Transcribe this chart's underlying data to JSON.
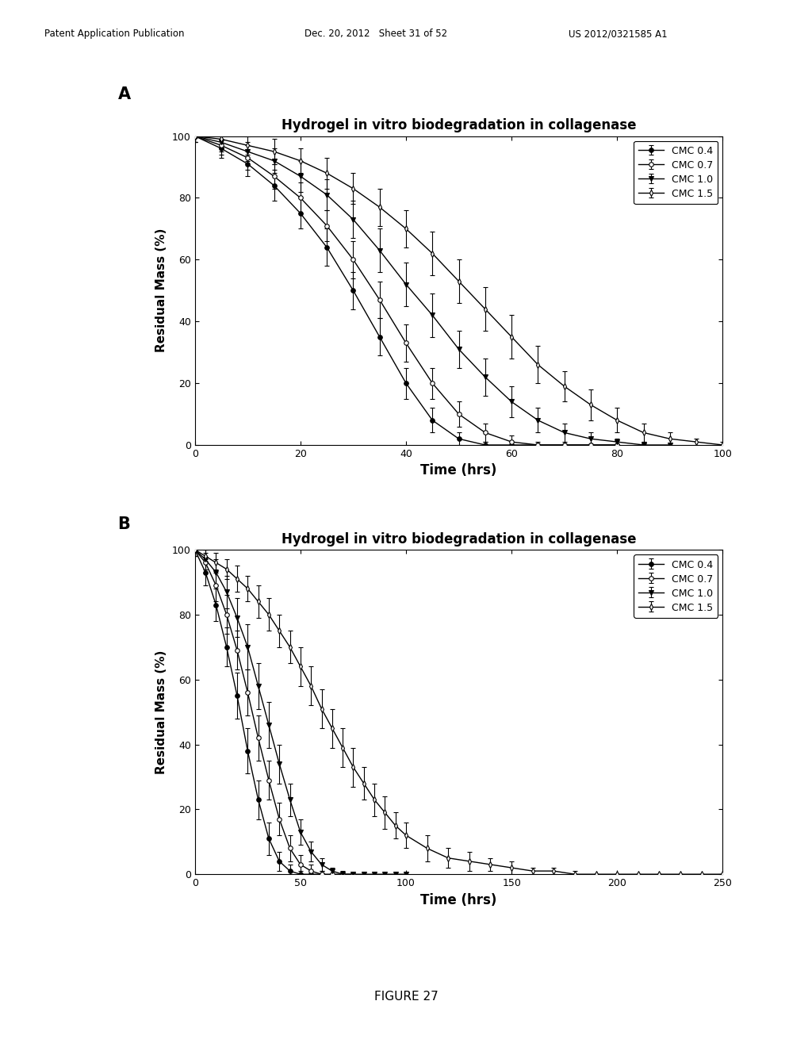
{
  "title": "Hydrogel in vitro biodegradation in collagenase",
  "xlabel": "Time (hrs)",
  "ylabel": "Residual Mass (%)",
  "panel_labels": [
    "A",
    "B"
  ],
  "figure_caption": "FIGURE 27",
  "legend_labels": [
    "CMC 0.4",
    "CMC 0.7",
    "CMC 1.0",
    "CMC 1.5"
  ],
  "header_left": "Patent Application Publication",
  "header_mid": "Dec. 20, 2012   Sheet 31 of 52",
  "header_right": "US 2012/0321585 A1",
  "plot_A": {
    "xlim": [
      0,
      100
    ],
    "ylim": [
      0,
      100
    ],
    "xticks": [
      0,
      20,
      40,
      60,
      80,
      100
    ],
    "yticks": [
      0,
      20,
      40,
      60,
      80,
      100
    ],
    "series": {
      "CMC_04": {
        "x": [
          0,
          5,
          10,
          15,
          20,
          25,
          30,
          35,
          40,
          45,
          50,
          55,
          60,
          65,
          70,
          75,
          80
        ],
        "y": [
          100,
          96,
          91,
          84,
          75,
          64,
          50,
          35,
          20,
          8,
          2,
          0,
          0,
          0,
          0,
          0,
          0
        ],
        "yerr": [
          2,
          3,
          4,
          5,
          5,
          6,
          6,
          6,
          5,
          4,
          2,
          1,
          0,
          0,
          0,
          0,
          0
        ]
      },
      "CMC_07": {
        "x": [
          0,
          5,
          10,
          15,
          20,
          25,
          30,
          35,
          40,
          45,
          50,
          55,
          60,
          65,
          70,
          75,
          80
        ],
        "y": [
          100,
          97,
          93,
          87,
          80,
          71,
          60,
          47,
          33,
          20,
          10,
          4,
          1,
          0,
          0,
          0,
          0
        ],
        "yerr": [
          2,
          3,
          4,
          4,
          5,
          5,
          6,
          6,
          6,
          5,
          4,
          3,
          2,
          1,
          0,
          0,
          0
        ]
      },
      "CMC_10": {
        "x": [
          0,
          5,
          10,
          15,
          20,
          25,
          30,
          35,
          40,
          45,
          50,
          55,
          60,
          65,
          70,
          75,
          80,
          85,
          90
        ],
        "y": [
          100,
          98,
          95,
          92,
          87,
          81,
          73,
          63,
          52,
          42,
          31,
          22,
          14,
          8,
          4,
          2,
          1,
          0,
          0
        ],
        "yerr": [
          2,
          3,
          3,
          4,
          5,
          5,
          6,
          7,
          7,
          7,
          6,
          6,
          5,
          4,
          3,
          2,
          1,
          1,
          0
        ]
      },
      "CMC_15": {
        "x": [
          0,
          5,
          10,
          15,
          20,
          25,
          30,
          35,
          40,
          45,
          50,
          55,
          60,
          65,
          70,
          75,
          80,
          85,
          90,
          95,
          100
        ],
        "y": [
          100,
          99,
          97,
          95,
          92,
          88,
          83,
          77,
          70,
          62,
          53,
          44,
          35,
          26,
          19,
          13,
          8,
          4,
          2,
          1,
          0
        ],
        "yerr": [
          2,
          3,
          3,
          4,
          4,
          5,
          5,
          6,
          6,
          7,
          7,
          7,
          7,
          6,
          5,
          5,
          4,
          3,
          2,
          1,
          1
        ]
      }
    }
  },
  "plot_B": {
    "xlim": [
      0,
      250
    ],
    "ylim": [
      0,
      100
    ],
    "xticks": [
      0,
      50,
      100,
      150,
      200,
      250
    ],
    "yticks": [
      0,
      20,
      40,
      60,
      80,
      100
    ],
    "series": {
      "CMC_04": {
        "x": [
          0,
          5,
          10,
          15,
          20,
          25,
          30,
          35,
          40,
          45,
          50,
          55,
          60
        ],
        "y": [
          100,
          93,
          83,
          70,
          55,
          38,
          23,
          11,
          4,
          1,
          0,
          0,
          0
        ],
        "yerr": [
          2,
          4,
          5,
          6,
          7,
          7,
          6,
          5,
          3,
          2,
          1,
          0,
          0
        ]
      },
      "CMC_07": {
        "x": [
          0,
          5,
          10,
          15,
          20,
          25,
          30,
          35,
          40,
          45,
          50,
          55,
          60,
          65,
          70,
          75
        ],
        "y": [
          100,
          96,
          89,
          80,
          69,
          56,
          42,
          29,
          17,
          8,
          3,
          1,
          0,
          0,
          0,
          0
        ],
        "yerr": [
          2,
          3,
          5,
          6,
          6,
          7,
          7,
          6,
          5,
          4,
          3,
          2,
          1,
          0,
          0,
          0
        ]
      },
      "CMC_10": {
        "x": [
          0,
          5,
          10,
          15,
          20,
          25,
          30,
          35,
          40,
          45,
          50,
          55,
          60,
          65,
          70,
          75,
          80,
          85,
          90,
          95,
          100
        ],
        "y": [
          100,
          97,
          93,
          87,
          79,
          70,
          58,
          46,
          34,
          23,
          13,
          7,
          3,
          1,
          0,
          0,
          0,
          0,
          0,
          0,
          0
        ],
        "yerr": [
          2,
          3,
          4,
          5,
          6,
          7,
          7,
          7,
          6,
          5,
          4,
          3,
          2,
          1,
          1,
          0,
          0,
          0,
          0,
          0,
          0
        ]
      },
      "CMC_15": {
        "x": [
          0,
          5,
          10,
          15,
          20,
          25,
          30,
          35,
          40,
          45,
          50,
          55,
          60,
          65,
          70,
          75,
          80,
          85,
          90,
          95,
          100,
          110,
          120,
          130,
          140,
          150,
          160,
          170,
          180,
          190,
          200,
          210,
          220,
          230,
          240,
          250
        ],
        "y": [
          100,
          98,
          96,
          94,
          91,
          88,
          84,
          80,
          75,
          70,
          64,
          58,
          51,
          45,
          39,
          33,
          28,
          23,
          19,
          15,
          12,
          8,
          5,
          4,
          3,
          2,
          1,
          1,
          0,
          0,
          0,
          0,
          0,
          0,
          0,
          0
        ],
        "yerr": [
          2,
          2,
          3,
          3,
          4,
          4,
          5,
          5,
          5,
          5,
          6,
          6,
          6,
          6,
          6,
          6,
          5,
          5,
          5,
          4,
          4,
          4,
          3,
          3,
          2,
          2,
          1,
          1,
          1,
          0,
          0,
          0,
          0,
          0,
          0,
          0
        ]
      }
    }
  },
  "line_color": "#000000",
  "bg_color": "#ffffff",
  "plot_bg_color": "#ffffff",
  "marker_size": 4,
  "line_width": 1.0,
  "elinewidth": 0.8,
  "capsize": 2
}
